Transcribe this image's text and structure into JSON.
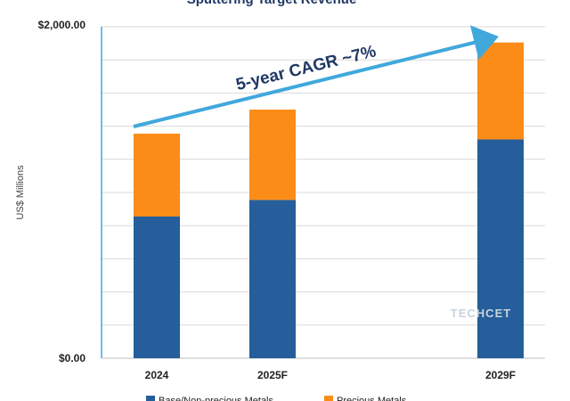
{
  "chart_data": {
    "type": "bar",
    "stacked": true,
    "title": "Sputtering Target Revenue",
    "ylabel": "US$ Millions",
    "xlabel": "",
    "categories": [
      "2024",
      "2025F",
      "2029F"
    ],
    "ylim": [
      0,
      2000
    ],
    "y_tick_labels": [
      "$2,000.00",
      "$0.00"
    ],
    "gridlines": true,
    "series": [
      {
        "name": "Base/Non-precious Metals",
        "color": "#255e9a",
        "values": [
          855,
          955,
          1320
        ]
      },
      {
        "name": "Precious Metals",
        "color": "#fb8c17",
        "values": [
          500,
          545,
          585
        ]
      }
    ],
    "legend_position": "bottom",
    "annotation": {
      "text": "5-year CAGR ~7%",
      "color": "#41a8dc"
    },
    "watermark": "TECHCET"
  }
}
